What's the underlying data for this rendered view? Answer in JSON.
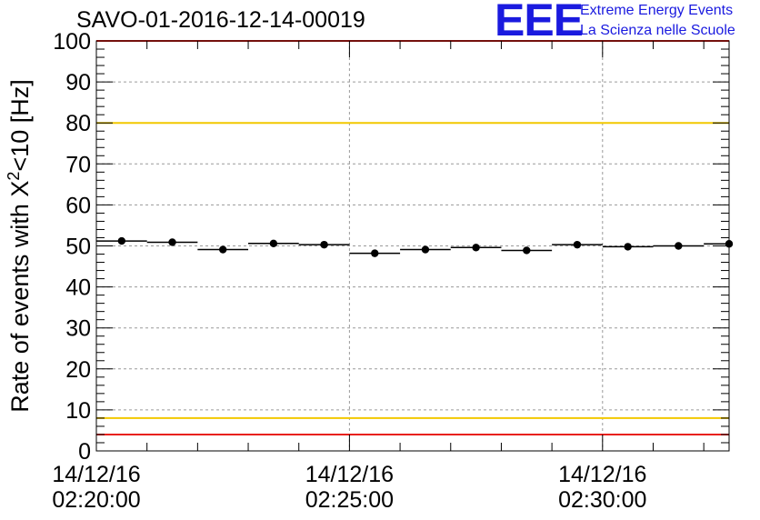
{
  "header": {
    "title": "SAVO-01-2016-12-14-00019"
  },
  "logo": {
    "mark": "EEE",
    "line1": "Extreme Energy Events",
    "line2": "La Scienza nelle Scuole",
    "color": "#1a1adf"
  },
  "chart_data": {
    "type": "scatter",
    "title": "SAVO-01-2016-12-14-00019",
    "xlabel": "",
    "ylabel_main": "Rate of events with X",
    "ylabel_sup": "2",
    "ylabel_tail": "<10 [Hz]",
    "xlim_seconds": [
      0,
      750
    ],
    "ylim": [
      0,
      100
    ],
    "y_ticks": [
      0,
      10,
      20,
      30,
      40,
      50,
      60,
      70,
      80,
      90,
      100
    ],
    "x_ticks": [
      {
        "seconds": 0,
        "date": "14/12/16",
        "time": "02:20:00"
      },
      {
        "seconds": 300,
        "date": "14/12/16",
        "time": "02:25:00"
      },
      {
        "seconds": 600,
        "date": "14/12/16",
        "time": "02:30:00"
      }
    ],
    "bin_width_seconds": 60,
    "points": [
      {
        "x": 30,
        "y": 51.2
      },
      {
        "x": 90,
        "y": 50.9
      },
      {
        "x": 150,
        "y": 49.1
      },
      {
        "x": 210,
        "y": 50.6
      },
      {
        "x": 270,
        "y": 50.3
      },
      {
        "x": 330,
        "y": 48.2
      },
      {
        "x": 390,
        "y": 49.1
      },
      {
        "x": 450,
        "y": 49.6
      },
      {
        "x": 510,
        "y": 48.9
      },
      {
        "x": 570,
        "y": 50.3
      },
      {
        "x": 630,
        "y": 49.8
      },
      {
        "x": 690,
        "y": 50.0
      },
      {
        "x": 750,
        "y": 50.5
      }
    ],
    "reference_lines": [
      {
        "name": "upper-red",
        "y": 100,
        "color": "#e8201a"
      },
      {
        "name": "upper-yellow",
        "y": 80,
        "color": "#f2c800"
      },
      {
        "name": "lower-yellow",
        "y": 8,
        "color": "#f2c800"
      },
      {
        "name": "lower-red",
        "y": 4,
        "color": "#e8201a"
      }
    ],
    "grid": true
  }
}
